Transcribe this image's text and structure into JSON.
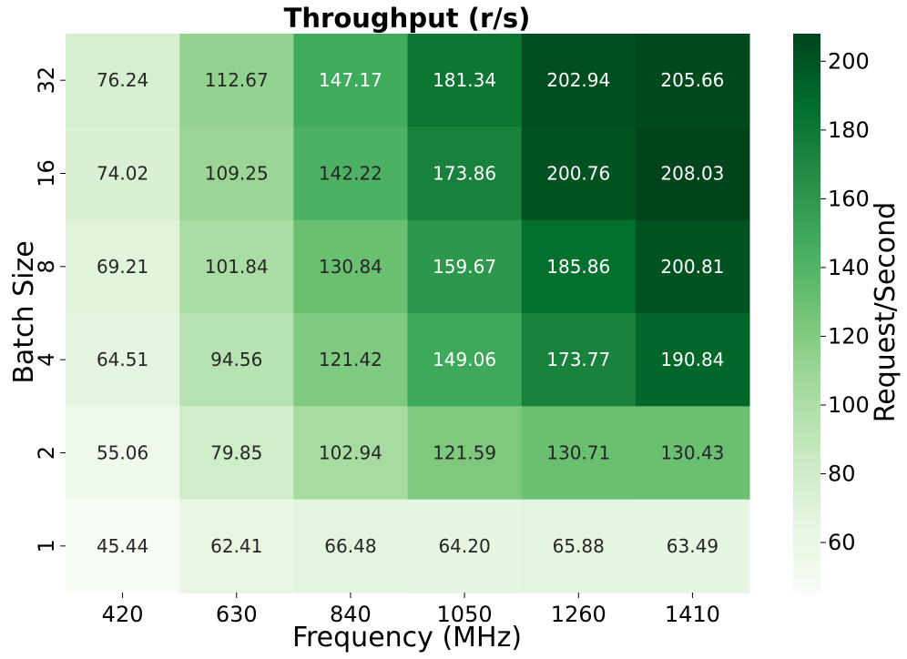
{
  "chart_data": {
    "type": "heatmap",
    "title": "Throughput (r/s)",
    "xlabel": "Frequency (MHz)",
    "ylabel": "Batch Size",
    "x_categories": [
      "420",
      "630",
      "840",
      "1050",
      "1260",
      "1410"
    ],
    "y_categories": [
      "32",
      "16",
      "8",
      "4",
      "2",
      "1"
    ],
    "values": [
      [
        76.24,
        112.67,
        147.17,
        181.34,
        202.94,
        205.66
      ],
      [
        74.02,
        109.25,
        142.22,
        173.86,
        200.76,
        208.03
      ],
      [
        69.21,
        101.84,
        130.84,
        159.67,
        185.86,
        200.81
      ],
      [
        64.51,
        94.56,
        121.42,
        149.06,
        173.77,
        190.84
      ],
      [
        55.06,
        79.85,
        102.94,
        121.59,
        130.71,
        130.43
      ],
      [
        45.44,
        62.41,
        66.48,
        64.2,
        65.88,
        63.49
      ]
    ],
    "value_labels": [
      [
        "76.24",
        "112.67",
        "147.17",
        "181.34",
        "202.94",
        "205.66"
      ],
      [
        "74.02",
        "109.25",
        "142.22",
        "173.86",
        "200.76",
        "208.03"
      ],
      [
        "69.21",
        "101.84",
        "130.84",
        "159.67",
        "185.86",
        "200.81"
      ],
      [
        "64.51",
        "94.56",
        "121.42",
        "149.06",
        "173.77",
        "190.84"
      ],
      [
        "55.06",
        "79.85",
        "102.94",
        "121.59",
        "130.71",
        "130.43"
      ],
      [
        "45.44",
        "62.41",
        "66.48",
        "64.20",
        "65.88",
        "63.49"
      ]
    ],
    "colorbar": {
      "label": "Request/Second",
      "range": [
        45.44,
        208.03
      ],
      "ticks": [
        "60",
        "80",
        "100",
        "120",
        "140",
        "160",
        "180",
        "200"
      ],
      "colormap": "Greens"
    }
  }
}
